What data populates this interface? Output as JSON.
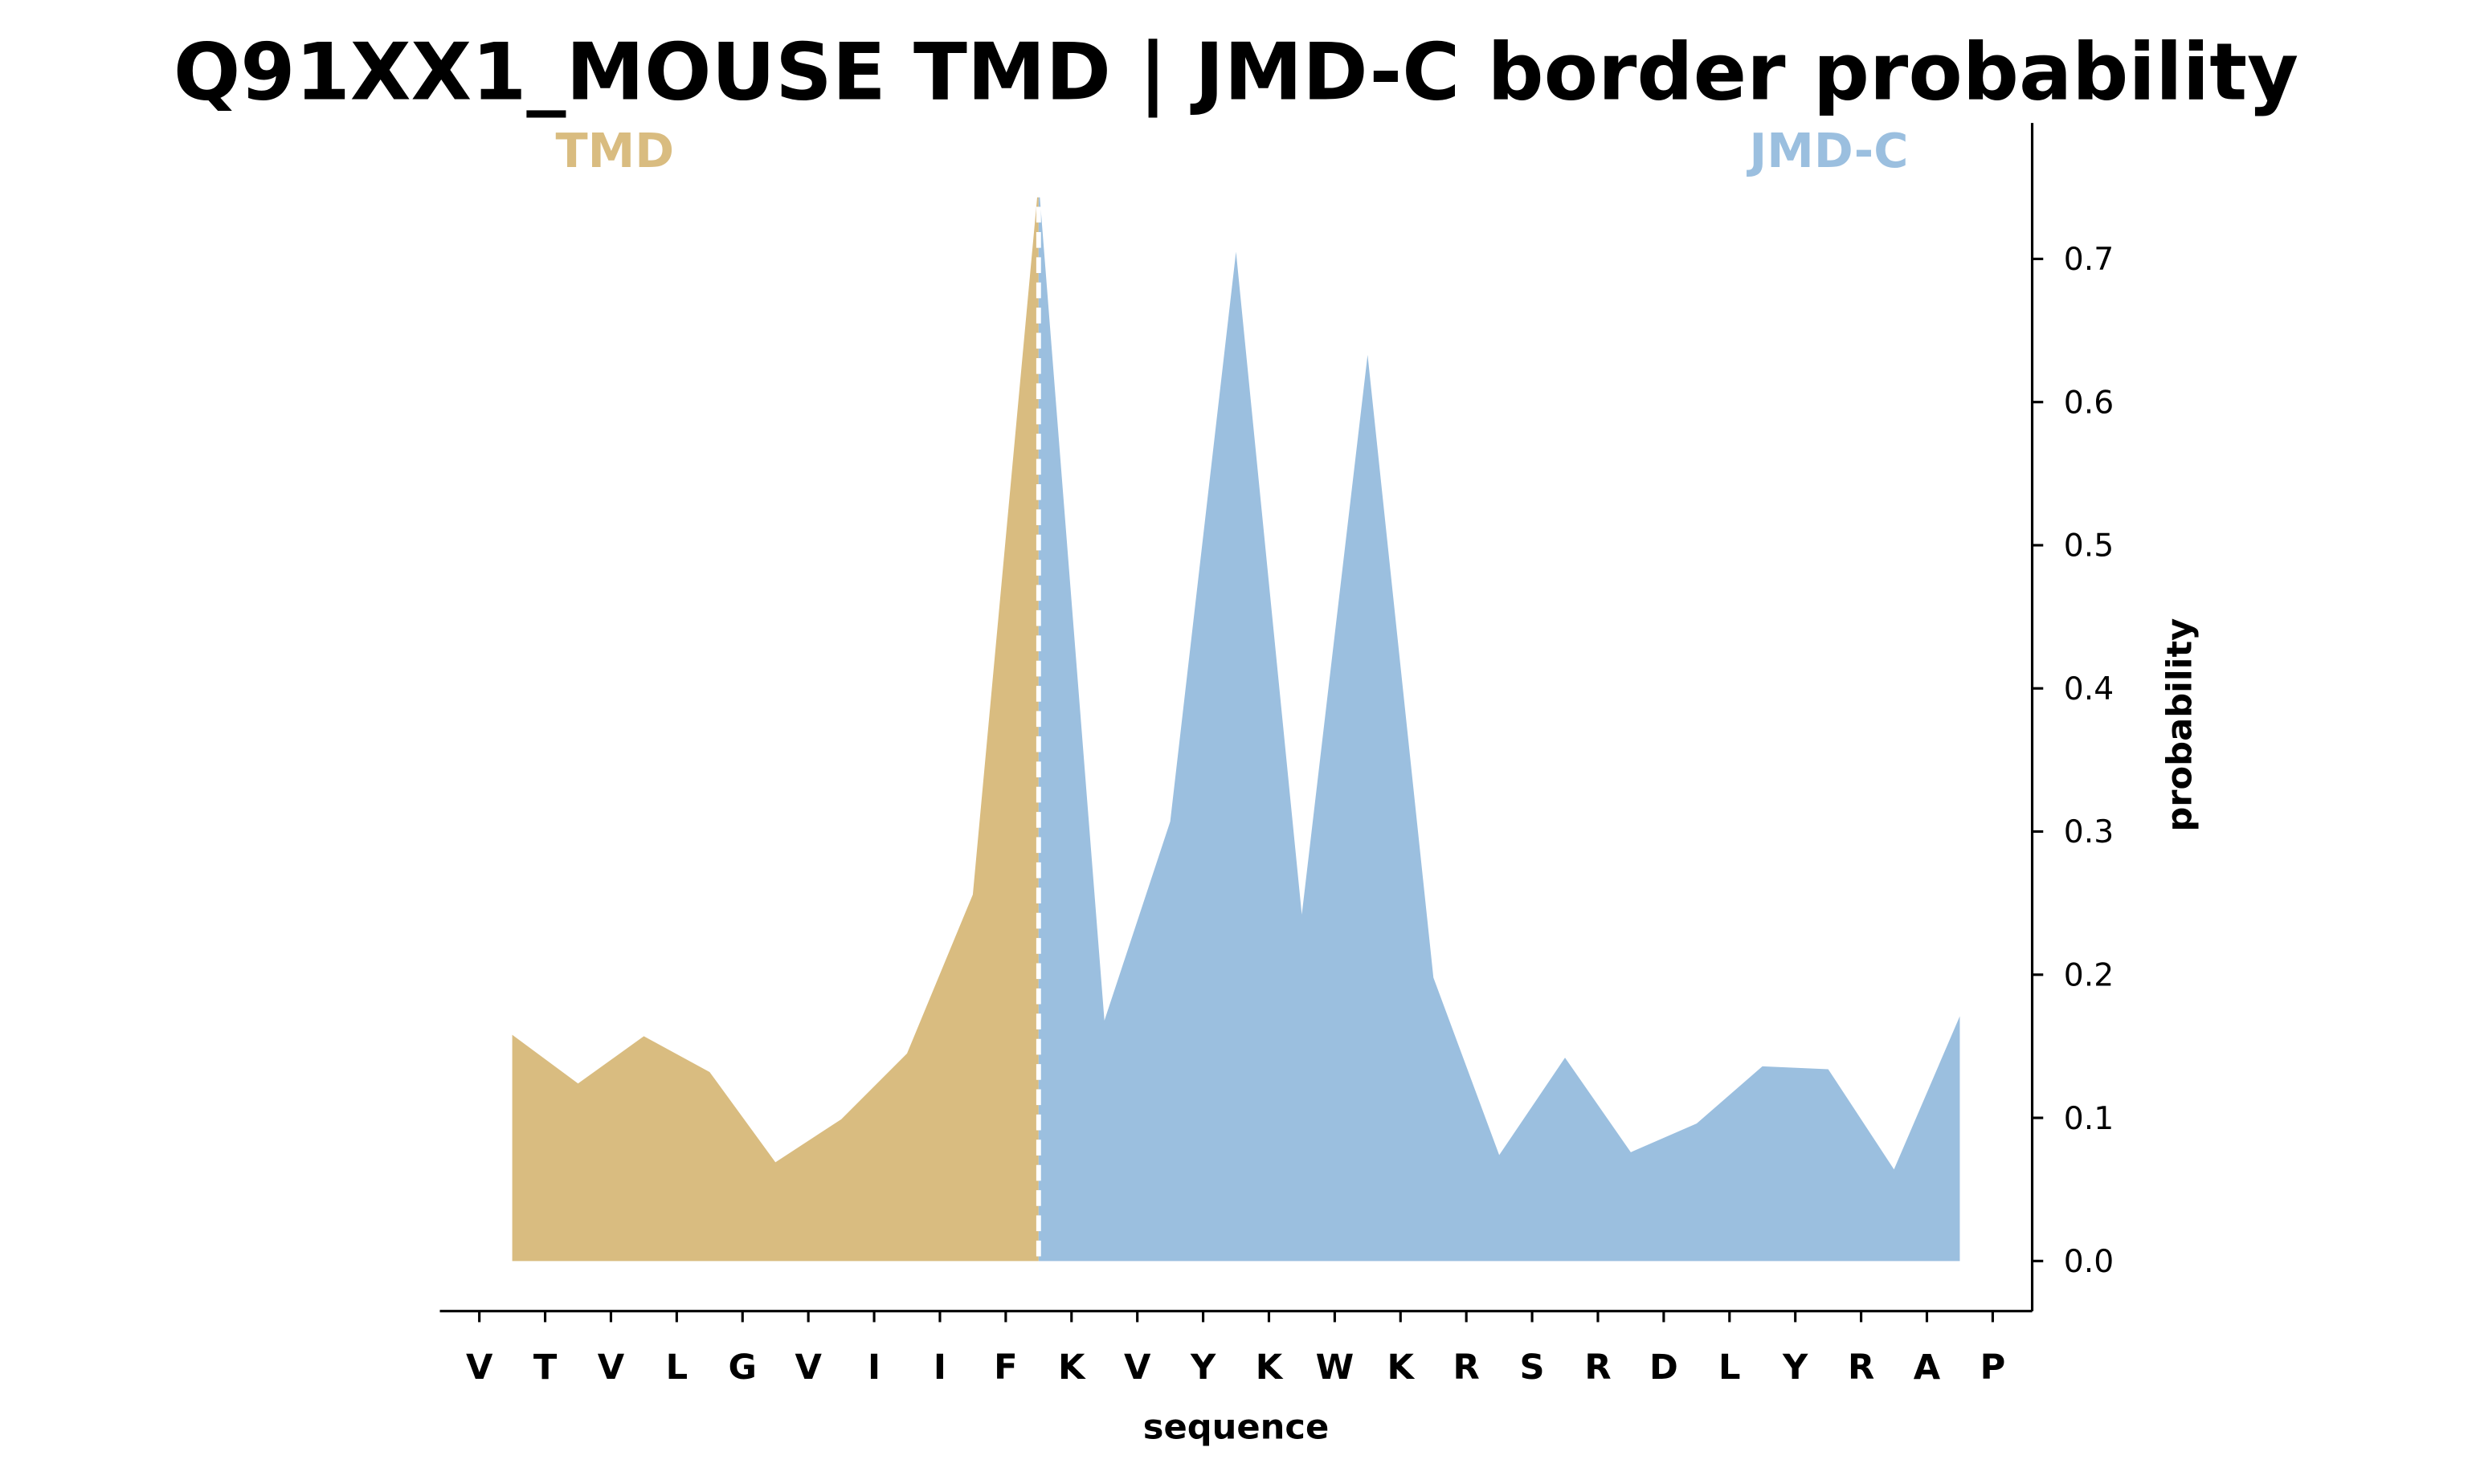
{
  "chart_data": {
    "type": "area",
    "title": "Q91XX1_MOUSE TMD | JMD-C border probability",
    "xlabel": "sequence",
    "ylabel": "probability",
    "xlim": [
      -0.6,
      23.6
    ],
    "ylim": [
      -0.035,
      0.795
    ],
    "xticks": [
      {
        "value": 0,
        "label": "V"
      },
      {
        "value": 1,
        "label": "T"
      },
      {
        "value": 2,
        "label": "V"
      },
      {
        "value": 3,
        "label": "L"
      },
      {
        "value": 4,
        "label": "G"
      },
      {
        "value": 5,
        "label": "V"
      },
      {
        "value": 6,
        "label": "I"
      },
      {
        "value": 7,
        "label": "I"
      },
      {
        "value": 8,
        "label": "F"
      },
      {
        "value": 9,
        "label": "K"
      },
      {
        "value": 10,
        "label": "V"
      },
      {
        "value": 11,
        "label": "Y"
      },
      {
        "value": 12,
        "label": "K"
      },
      {
        "value": 13,
        "label": "W"
      },
      {
        "value": 14,
        "label": "K"
      },
      {
        "value": 15,
        "label": "R"
      },
      {
        "value": 16,
        "label": "S"
      },
      {
        "value": 17,
        "label": "R"
      },
      {
        "value": 18,
        "label": "D"
      },
      {
        "value": 19,
        "label": "L"
      },
      {
        "value": 20,
        "label": "Y"
      },
      {
        "value": 21,
        "label": "R"
      },
      {
        "value": 22,
        "label": "A"
      },
      {
        "value": 23,
        "label": "P"
      }
    ],
    "yticks": [
      {
        "value": 0,
        "label": "0.0"
      },
      0.1,
      0.2,
      0.3,
      0.4,
      0.5,
      0.6,
      0.7
    ],
    "yaxis_side": "right",
    "border": 8.5,
    "series": [
      {
        "name": "TMD",
        "color": "#d9bc80",
        "x": [
          0.5,
          1.5,
          2.5,
          3.5,
          4.5,
          5.5,
          6.5,
          7.5,
          8.5
        ],
        "values": [
          0.158,
          0.124,
          0.157,
          0.132,
          0.069,
          0.099,
          0.145,
          0.256,
          0.754
        ]
      },
      {
        "name": "JMD-C",
        "color": "#9bbfdf",
        "x": [
          8.5,
          9.5,
          10.5,
          11.5,
          12.5,
          13.5,
          14.5,
          15.5,
          16.5,
          17.5,
          18.5,
          19.5,
          20.5,
          21.5,
          22.5
        ],
        "values": [
          0.754,
          0.168,
          0.307,
          0.705,
          0.242,
          0.633,
          0.198,
          0.074,
          0.142,
          0.076,
          0.096,
          0.136,
          0.134,
          0.064,
          0.171
        ]
      }
    ]
  }
}
